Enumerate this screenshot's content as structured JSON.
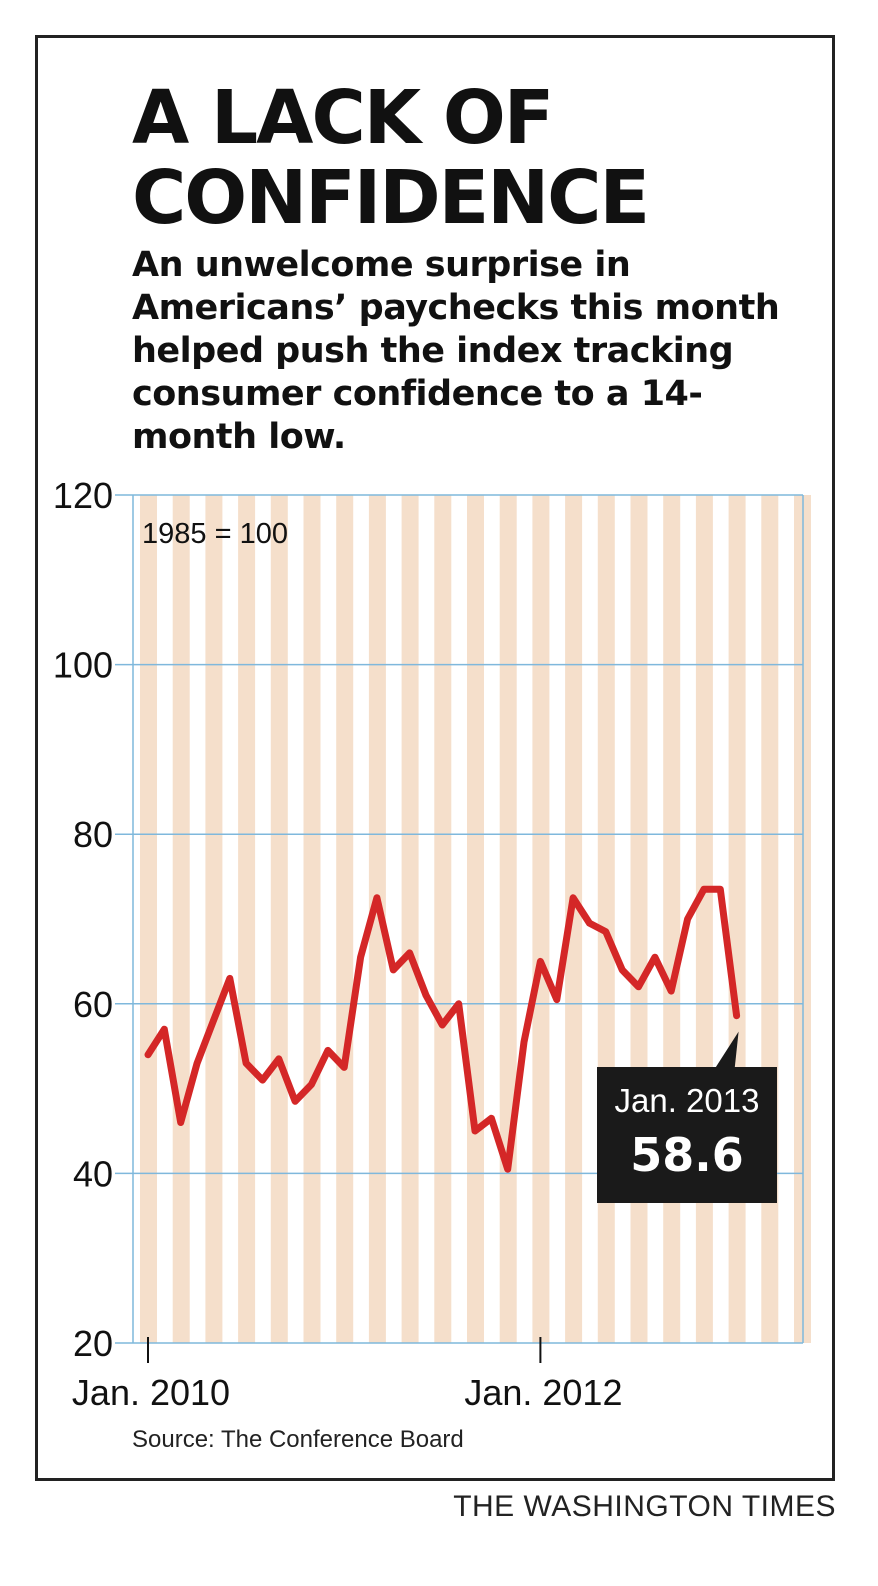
{
  "title_lines": [
    "A LACK OF",
    "CONFIDENCE"
  ],
  "subtitle": "An unwelcome surprise in Americans’ paychecks this month helped push the index tracking consumer confidence to a 14-month low.",
  "source": "Source: The Conference Board",
  "brand": "THE WASHINGTON TIMES",
  "colors": {
    "line": "#d42727",
    "stripe": "#f5dfcb",
    "grid": "#7fb8dc",
    "callout_bg": "#1a1a1a",
    "callout_text": "#ffffff"
  },
  "chart_data": {
    "type": "line",
    "title": "A LACK OF CONFIDENCE",
    "unit_note": "1985 = 100",
    "ylim": [
      20,
      120
    ],
    "yticks": [
      20,
      40,
      60,
      80,
      100,
      120
    ],
    "xticks": [
      {
        "label": "Jan. 2010",
        "index": 0
      },
      {
        "label": "Jan. 2012",
        "index": 24
      }
    ],
    "grid": true,
    "series": [
      {
        "values": [
          54,
          57,
          46,
          53,
          58,
          63,
          53,
          51,
          53.5,
          48.5,
          50.5,
          54.5,
          52.5,
          65.5,
          72.5,
          64,
          66,
          61,
          57.5,
          60,
          45,
          46.5,
          40.5,
          55.5,
          65,
          60.5,
          72.5,
          69.5,
          68.5,
          64,
          62,
          65.5,
          61.5,
          70,
          73.5,
          73.5,
          58.6
        ]
      }
    ],
    "callout": {
      "label": "Jan. 2013",
      "value": "58.6",
      "index": 36
    }
  }
}
